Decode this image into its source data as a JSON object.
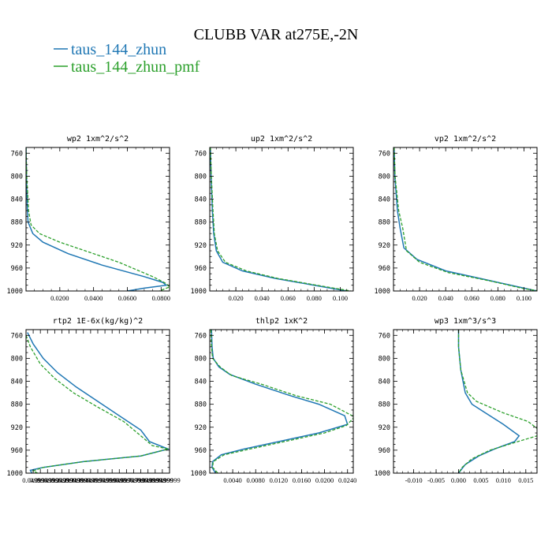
{
  "figure": {
    "title": "CLUBB VAR at275E,-2N",
    "legend": [
      {
        "label": "taus_144_zhun",
        "color": "#1f77b4",
        "dashed": false
      },
      {
        "label": "taus_144_zhun_pmf",
        "color": "#2ca02c",
        "dashed": true
      }
    ]
  },
  "chart_data": [
    {
      "type": "line",
      "title": "wp2  1xm^2/s^2",
      "ylim": [
        1000,
        750
      ],
      "yticks": [
        760,
        800,
        840,
        880,
        920,
        960,
        1000
      ],
      "xlim": [
        0,
        0.085
      ],
      "xticks": [
        0.02,
        0.04,
        0.06,
        0.08
      ],
      "xticklabels": [
        "0.0200",
        "0.0400",
        "0.0600",
        "0.0800"
      ],
      "series": [
        {
          "name": "taus_144_zhun",
          "points": [
            [
              0,
              750
            ],
            [
              0.0003,
              800
            ],
            [
              0.0008,
              860
            ],
            [
              0.0012,
              880
            ],
            [
              0.004,
              900
            ],
            [
              0.01,
              915
            ],
            [
              0.025,
              935
            ],
            [
              0.045,
              955
            ],
            [
              0.07,
              975
            ],
            [
              0.081,
              985
            ],
            [
              0.083,
              990
            ],
            [
              0.07,
              995
            ],
            [
              0.06,
              1000
            ]
          ]
        },
        {
          "name": "taus_144_zhun_pmf",
          "points": [
            [
              0,
              750
            ],
            [
              0.0004,
              800
            ],
            [
              0.0015,
              860
            ],
            [
              0.003,
              885
            ],
            [
              0.008,
              900
            ],
            [
              0.02,
              915
            ],
            [
              0.035,
              930
            ],
            [
              0.055,
              950
            ],
            [
              0.075,
              975
            ],
            [
              0.083,
              987
            ],
            [
              0.085,
              993
            ],
            [
              0.079,
              1000
            ]
          ]
        }
      ]
    },
    {
      "type": "line",
      "title": "up2  1xm^2/s^2",
      "ylim": [
        1000,
        750
      ],
      "yticks": [
        760,
        800,
        840,
        880,
        920,
        960,
        1000
      ],
      "xlim": [
        0,
        0.11
      ],
      "xticks": [
        0.02,
        0.04,
        0.06,
        0.08,
        0.1
      ],
      "xticklabels": [
        "0.020",
        "0.040",
        "0.060",
        "0.080",
        "0.100"
      ],
      "series": [
        {
          "name": "taus_144_zhun",
          "points": [
            [
              0.0005,
              750
            ],
            [
              0.001,
              800
            ],
            [
              0.002,
              860
            ],
            [
              0.003,
              900
            ],
            [
              0.005,
              930
            ],
            [
              0.01,
              950
            ],
            [
              0.025,
              965
            ],
            [
              0.05,
              978
            ],
            [
              0.08,
              990
            ],
            [
              0.105,
              1000
            ]
          ]
        },
        {
          "name": "taus_144_zhun_pmf",
          "points": [
            [
              0.0005,
              750
            ],
            [
              0.0012,
              800
            ],
            [
              0.0025,
              860
            ],
            [
              0.0035,
              900
            ],
            [
              0.006,
              930
            ],
            [
              0.012,
              950
            ],
            [
              0.028,
              965
            ],
            [
              0.052,
              978
            ],
            [
              0.082,
              990
            ],
            [
              0.108,
              1000
            ]
          ]
        }
      ]
    },
    {
      "type": "line",
      "title": "vp2  1xm^2/s^2",
      "ylim": [
        1000,
        750
      ],
      "yticks": [
        760,
        800,
        840,
        880,
        920,
        960,
        1000
      ],
      "xlim": [
        0,
        0.11
      ],
      "xticks": [
        0.02,
        0.04,
        0.06,
        0.08,
        0.1
      ],
      "xticklabels": [
        "0.020",
        "0.040",
        "0.060",
        "0.080",
        "0.100"
      ],
      "series": [
        {
          "name": "taus_144_zhun",
          "points": [
            [
              0.0005,
              750
            ],
            [
              0.001,
              800
            ],
            [
              0.003,
              860
            ],
            [
              0.005,
              890
            ],
            [
              0.008,
              925
            ],
            [
              0.018,
              945
            ],
            [
              0.04,
              965
            ],
            [
              0.07,
              980
            ],
            [
              0.1,
              995
            ],
            [
              0.11,
              1000
            ]
          ]
        },
        {
          "name": "taus_144_zhun_pmf",
          "points": [
            [
              0.0005,
              750
            ],
            [
              0.0012,
              800
            ],
            [
              0.004,
              860
            ],
            [
              0.007,
              890
            ],
            [
              0.01,
              930
            ],
            [
              0.02,
              950
            ],
            [
              0.042,
              968
            ],
            [
              0.075,
              983
            ],
            [
              0.1,
              996
            ],
            [
              0.112,
              1000
            ]
          ]
        }
      ]
    },
    {
      "type": "line",
      "title": "rtp2  1E-6x(kg/kg)^2",
      "ylim": [
        1000,
        750
      ],
      "yticks": [
        760,
        800,
        840,
        880,
        920,
        960,
        1000
      ],
      "xlim": [
        0,
        1
      ],
      "xticks": [
        0.0499,
        0.0999,
        0.1499,
        0.1999,
        0.2499,
        0.2999,
        0.3499,
        0.3999,
        0.4499,
        0.4999,
        0.5499,
        0.5999,
        0.6499,
        0.6999,
        0.7499,
        0.7999,
        0.8499,
        0.8999,
        0.9499,
        0.9999
      ],
      "xticklabels": [
        "0.04999",
        "0.09999",
        "0.14999",
        "0.19999",
        "0.24999",
        "0.29999",
        "0.34999",
        "0.39999",
        "0.44999",
        "0.49999",
        "0.54999",
        "0.59999",
        "0.64999",
        "0.69999",
        "0.74999",
        "0.79999",
        "0.84999",
        "0.89999",
        "0.94999",
        "0.99999"
      ],
      "series": [
        {
          "name": "taus_144_zhun",
          "points": [
            [
              0.01,
              755
            ],
            [
              0.05,
              775
            ],
            [
              0.12,
              800
            ],
            [
              0.22,
              825
            ],
            [
              0.35,
              850
            ],
            [
              0.5,
              875
            ],
            [
              0.65,
              900
            ],
            [
              0.8,
              925
            ],
            [
              0.86,
              945
            ],
            [
              0.99,
              958
            ],
            [
              0.8,
              970
            ],
            [
              0.4,
              980
            ],
            [
              0.12,
              990
            ],
            [
              0.03,
              995
            ],
            [
              0.04,
              1000
            ]
          ]
        },
        {
          "name": "taus_144_zhun_pmf",
          "points": [
            [
              0.0,
              760
            ],
            [
              0.03,
              780
            ],
            [
              0.1,
              810
            ],
            [
              0.2,
              835
            ],
            [
              0.33,
              860
            ],
            [
              0.5,
              885
            ],
            [
              0.68,
              910
            ],
            [
              0.8,
              935
            ],
            [
              0.88,
              952
            ],
            [
              0.99,
              958
            ],
            [
              0.8,
              970
            ],
            [
              0.4,
              980
            ],
            [
              0.12,
              990
            ],
            [
              0.05,
              996
            ],
            [
              0.08,
              1000
            ]
          ]
        }
      ]
    },
    {
      "type": "line",
      "title": "thlp2  1xK^2",
      "ylim": [
        1000,
        750
      ],
      "yticks": [
        760,
        800,
        840,
        880,
        920,
        960,
        1000
      ],
      "xlim": [
        0,
        0.025
      ],
      "xticks": [
        0.004,
        0.008,
        0.012,
        0.016,
        0.02,
        0.024
      ],
      "xticklabels": [
        "0.0040",
        "0.0080",
        "0.0120",
        "0.0160",
        "0.0200",
        "0.0240"
      ],
      "series": [
        {
          "name": "taus_144_zhun",
          "points": [
            [
              0.0003,
              750
            ],
            [
              0.0004,
              780
            ],
            [
              0.0006,
              800
            ],
            [
              0.0016,
              815
            ],
            [
              0.0035,
              828
            ],
            [
              0.008,
              845
            ],
            [
              0.014,
              865
            ],
            [
              0.019,
              880
            ],
            [
              0.0235,
              900
            ],
            [
              0.024,
              915
            ],
            [
              0.019,
              930
            ],
            [
              0.012,
              945
            ],
            [
              0.006,
              958
            ],
            [
              0.002,
              968
            ],
            [
              0.0005,
              980
            ],
            [
              0.0004,
              990
            ],
            [
              0.001,
              1000
            ]
          ]
        },
        {
          "name": "taus_144_zhun_pmf",
          "points": [
            [
              0.0002,
              750
            ],
            [
              0.0003,
              780
            ],
            [
              0.0005,
              800
            ],
            [
              0.0018,
              815
            ],
            [
              0.0038,
              830
            ],
            [
              0.009,
              845
            ],
            [
              0.015,
              865
            ],
            [
              0.021,
              880
            ],
            [
              0.0252,
              902
            ],
            [
              0.0238,
              917
            ],
            [
              0.02,
              930
            ],
            [
              0.013,
              945
            ],
            [
              0.007,
              958
            ],
            [
              0.0025,
              968
            ],
            [
              0.0006,
              980
            ],
            [
              0.0005,
              990
            ],
            [
              0.0014,
              1000
            ]
          ]
        }
      ]
    },
    {
      "type": "line",
      "title": "wp3  1xm^3/s^3",
      "ylim": [
        1000,
        750
      ],
      "yticks": [
        760,
        800,
        840,
        880,
        920,
        960,
        1000
      ],
      "xlim": [
        -0.0145,
        0.0175
      ],
      "xticks": [
        -0.01,
        -0.005,
        0.0,
        0.005,
        0.01,
        0.015
      ],
      "xticklabels": [
        "-0.010",
        "-0.005",
        "0.000",
        "0.005",
        "0.010",
        "0.015"
      ],
      "series": [
        {
          "name": "taus_144_zhun",
          "points": [
            [
              0.0,
              750
            ],
            [
              0.0,
              780
            ],
            [
              0.0005,
              820
            ],
            [
              0.0015,
              860
            ],
            [
              0.003,
              880
            ],
            [
              0.006,
              895
            ],
            [
              0.01,
              915
            ],
            [
              0.0135,
              935
            ],
            [
              0.0125,
              945
            ],
            [
              0.008,
              958
            ],
            [
              0.0045,
              970
            ],
            [
              0.0015,
              985
            ],
            [
              0.0,
              1000
            ]
          ]
        },
        {
          "name": "taus_144_zhun_pmf",
          "points": [
            [
              0.0,
              750
            ],
            [
              0.0,
              780
            ],
            [
              0.0005,
              820
            ],
            [
              0.002,
              860
            ],
            [
              0.004,
              875
            ],
            [
              0.01,
              895
            ],
            [
              0.0155,
              910
            ],
            [
              0.018,
              925
            ],
            [
              0.0175,
              935
            ],
            [
              0.012,
              948
            ],
            [
              0.007,
              960
            ],
            [
              0.003,
              975
            ],
            [
              0.0008,
              990
            ],
            [
              0.0,
              1000
            ]
          ]
        }
      ]
    }
  ]
}
